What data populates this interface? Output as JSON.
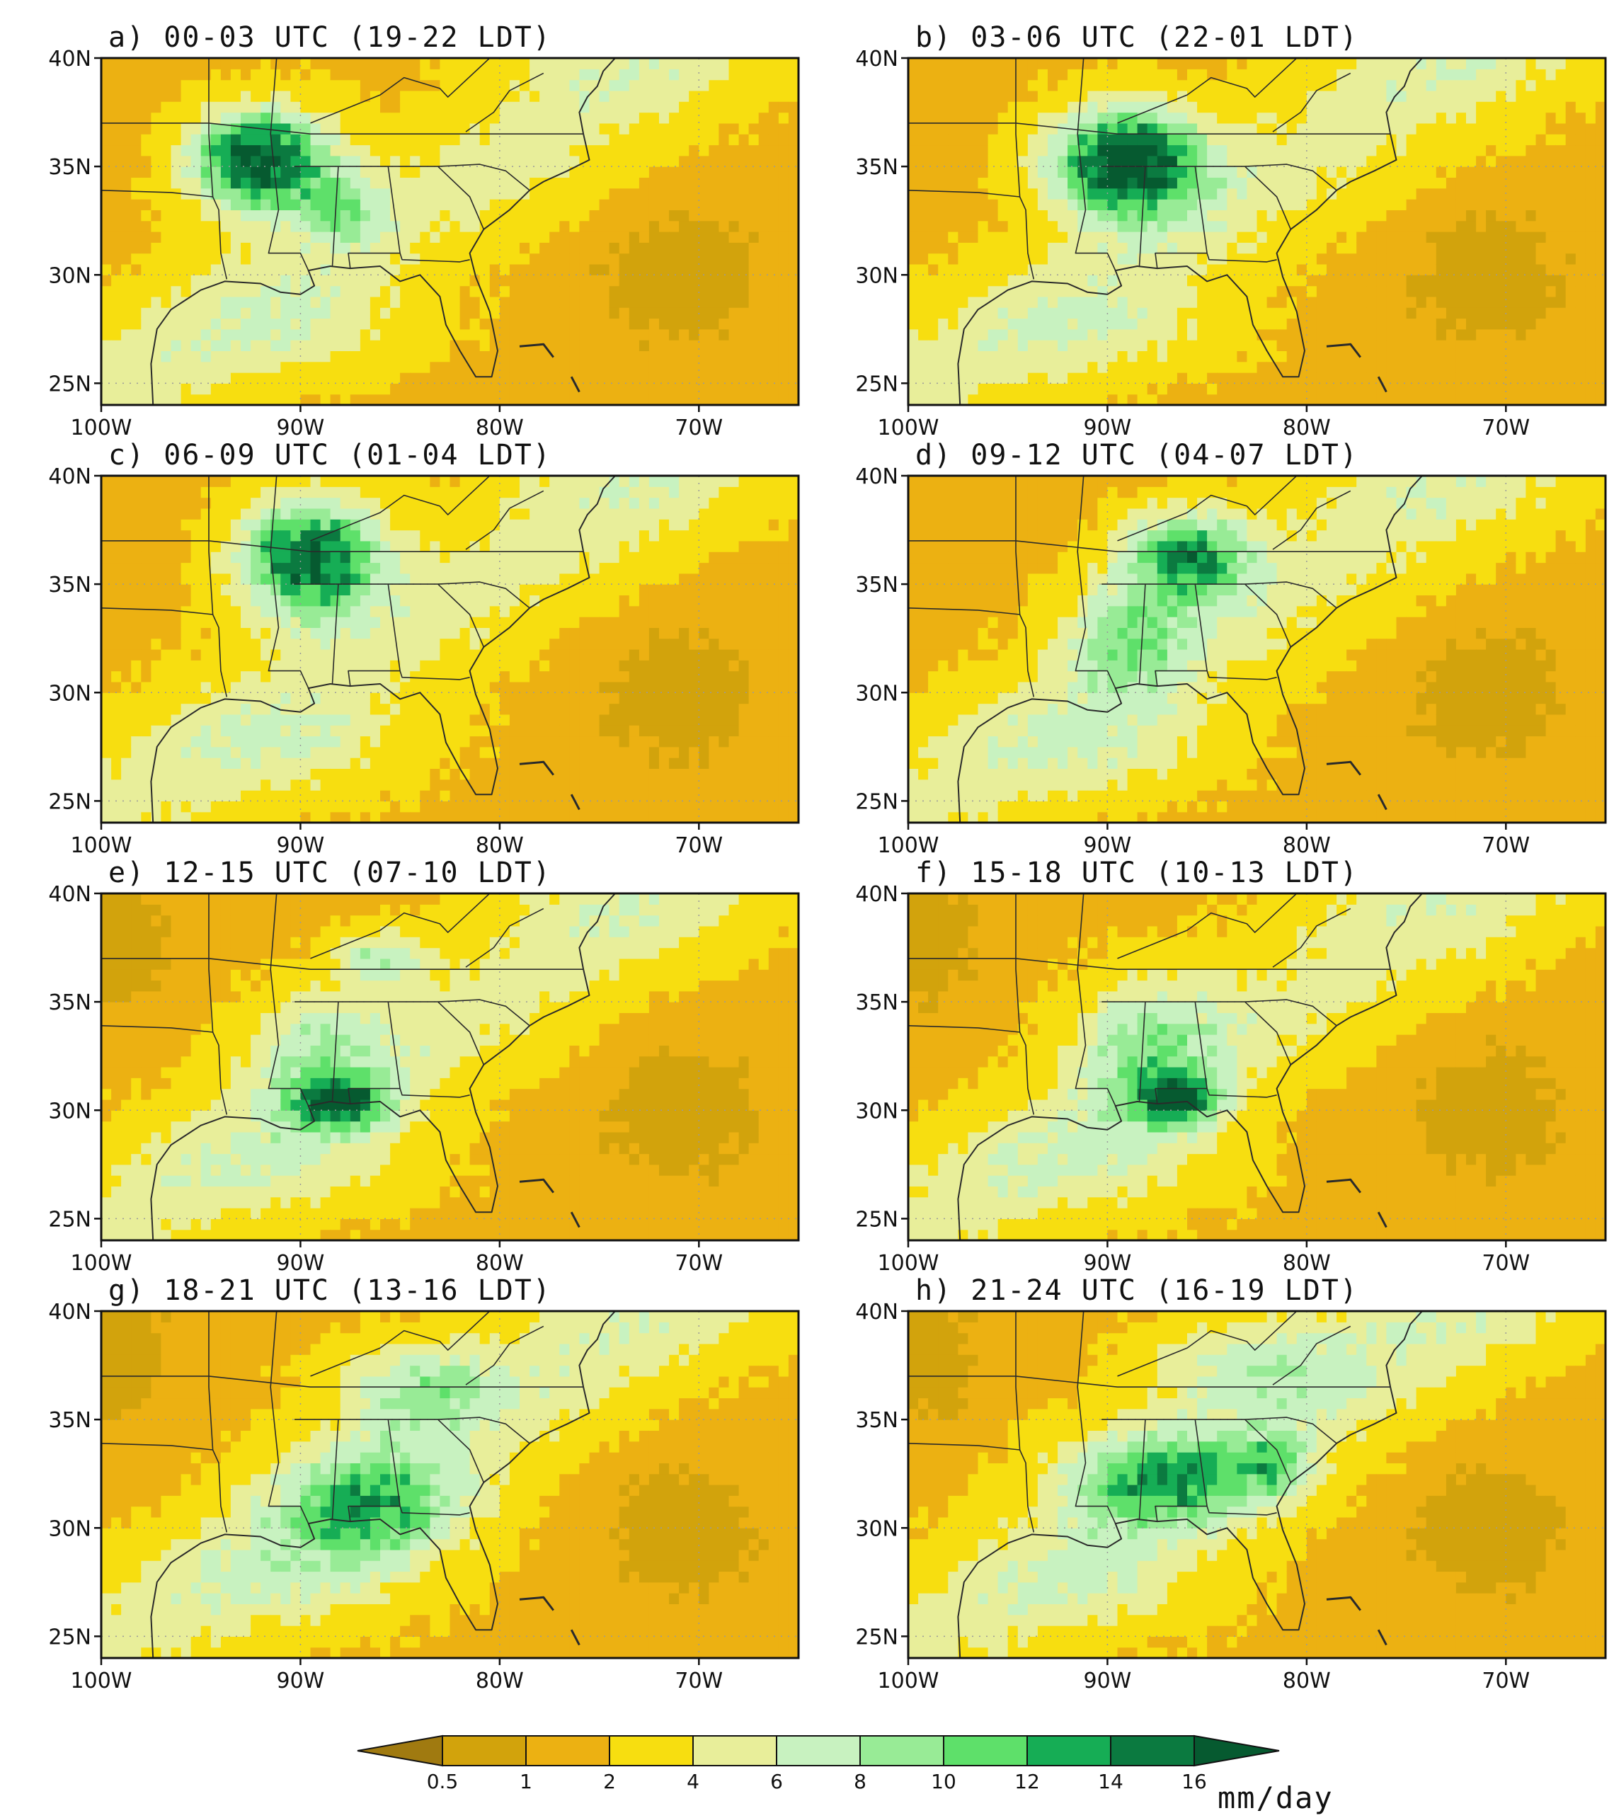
{
  "figure": {
    "panels": [
      {
        "id": "a",
        "title": "a) 00-03 UTC (19-22 LDT)"
      },
      {
        "id": "b",
        "title": "b) 03-06 UTC (22-01 LDT)"
      },
      {
        "id": "c",
        "title": "c) 06-09 UTC (01-04 LDT)"
      },
      {
        "id": "d",
        "title": "d) 09-12 UTC (04-07 LDT)"
      },
      {
        "id": "e",
        "title": "e) 12-15 UTC (07-10 LDT)"
      },
      {
        "id": "f",
        "title": "f) 15-18 UTC (10-13 LDT)"
      },
      {
        "id": "g",
        "title": "g) 18-21 UTC (13-16 LDT)"
      },
      {
        "id": "h",
        "title": "h) 21-24 UTC (16-19 LDT)"
      }
    ],
    "lat_ticks": [
      "40N",
      "35N",
      "30N",
      "25N"
    ],
    "lon_ticks": [
      "100W",
      "90W",
      "80W",
      "70W"
    ],
    "colorbar": {
      "levels": [
        "0.5",
        "1",
        "2",
        "4",
        "6",
        "8",
        "10",
        "12",
        "14",
        "16"
      ],
      "colors": [
        "#a07a10",
        "#d2a30c",
        "#ecb112",
        "#f7de10",
        "#e8ee9a",
        "#c8f2c0",
        "#98eb96",
        "#5ee06a",
        "#16ad55",
        "#0b7a40",
        "#065a30"
      ],
      "unit": "mm/day"
    }
  }
}
